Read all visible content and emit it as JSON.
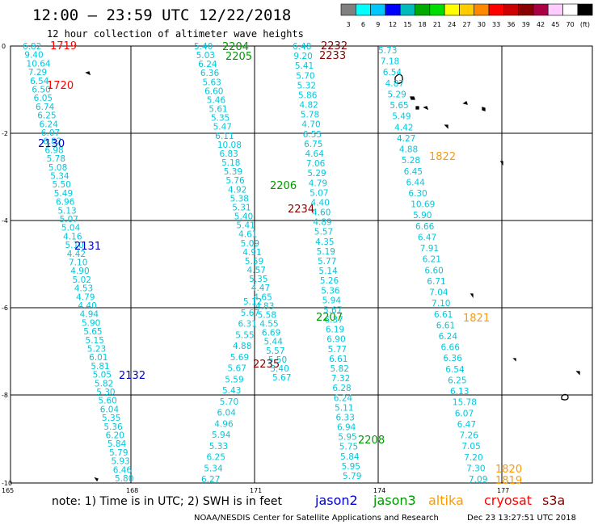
{
  "header": {
    "title": "12:00 — 23:59 UTC 12/22/2018",
    "subtitle": "12 hour collection of altimeter wave heights"
  },
  "legend": {
    "colors": [
      "#808080",
      "#00ffff",
      "#00c8ff",
      "#0000ff",
      "#00bbbb",
      "#00aa00",
      "#00dd00",
      "#ffff00",
      "#ffcc00",
      "#ff8800",
      "#ff0000",
      "#cc0000",
      "#880000",
      "#aa0044",
      "#ffccff",
      "#ffffff",
      "#000000"
    ],
    "labels": [
      "3",
      "6",
      "9",
      "12",
      "15",
      "18",
      "21",
      "24",
      "27",
      "30",
      "33",
      "36",
      "39",
      "42",
      "45",
      "70",
      "(ft)"
    ]
  },
  "axes": {
    "y_ticks": [
      "0",
      "-2",
      "-4",
      "-6",
      "-8",
      "-10"
    ],
    "x_ticks": [
      "165",
      "168",
      "171",
      "174",
      "177"
    ]
  },
  "footer": {
    "note": "note:  1) Time is in UTC;  2) SWH is in feet",
    "credit": "NOAA/NESDIS Center for Satellite Applications and Research",
    "timestamp": "Dec 23 13:27:51 UTC 2018"
  },
  "satellites": [
    {
      "name": "jason2",
      "color": "#0000cc"
    },
    {
      "name": "jason3",
      "color": "#009900"
    },
    {
      "name": "altika",
      "color": "#ff9900"
    },
    {
      "name": "cryosat",
      "color": "#ff0000"
    },
    {
      "name": "s3a",
      "color": "#880000"
    }
  ],
  "time_labels": [
    {
      "text": "1719",
      "color": "#ff0000"
    },
    {
      "text": "1720",
      "color": "#ff0000"
    },
    {
      "text": "2130",
      "color": "#0000cc"
    },
    {
      "text": "2131",
      "color": "#0000cc"
    },
    {
      "text": "2132",
      "color": "#0000cc"
    },
    {
      "text": "2204",
      "color": "#009900"
    },
    {
      "text": "2205",
      "color": "#009900"
    },
    {
      "text": "2206",
      "color": "#009900"
    },
    {
      "text": "2207",
      "color": "#009900"
    },
    {
      "text": "2208",
      "color": "#009900"
    },
    {
      "text": "2232",
      "color": "#880000"
    },
    {
      "text": "2233",
      "color": "#880000"
    },
    {
      "text": "2234",
      "color": "#880000"
    },
    {
      "text": "2235",
      "color": "#880000"
    },
    {
      "text": "1822",
      "color": "#ff9900"
    },
    {
      "text": "1821",
      "color": "#ff9900"
    },
    {
      "text": "1820",
      "color": "#ff9900"
    },
    {
      "text": "1819",
      "color": "#ff9900"
    }
  ],
  "tracks": [
    {
      "id": "cryosat-1719",
      "values": [
        "6.82",
        "9.40",
        "10.64",
        "7.29",
        "6.54",
        "6.50",
        "6.05",
        "6.74",
        "6.25",
        "6.24",
        "6.07",
        "6.82",
        "6.98",
        "5.78",
        "5.08",
        "5.34",
        "5.50",
        "5.49",
        "6.96",
        "5.13",
        "5.07",
        "5.04",
        "4.16",
        "5.10",
        "4.42",
        "7.10",
        "4.90",
        "5.02",
        "4.53",
        "4.79",
        "4.40",
        "4.94",
        "5.90",
        "5.65",
        "5.15",
        "5.23",
        "6.01",
        "5.81",
        "5.05",
        "5.82",
        "5.30",
        "5.60",
        "6.04",
        "5.35",
        "5.36",
        "6.20",
        "5.84",
        "5.79",
        "5.93",
        "6.46",
        "5.80"
      ]
    },
    {
      "id": "jason3-2204",
      "values": [
        "5.40",
        "5.03",
        "6.24",
        "6.36",
        "5.63",
        "6.60",
        "5.46",
        "5.61",
        "5.35",
        "5.47",
        "6.11",
        "10.08",
        "6.83",
        "5.18",
        "5.39",
        "5.76",
        "4.92",
        "5.38",
        "5.31",
        "5.40",
        "5.41",
        "4.61",
        "5.09",
        "4.91",
        "5.59",
        "4.57",
        "5.35",
        "4.47",
        "4.65",
        "4.83",
        "5.58",
        "4.55",
        "6.69",
        "5.44",
        "5.57",
        "5.50",
        "5.40",
        "5.67"
      ]
    },
    {
      "id": "s3a-2232",
      "values": [
        "6.48",
        "9.20",
        "5.41",
        "5.70",
        "5.32",
        "5.86",
        "4.82",
        "5.78",
        "4.70",
        "6.55",
        "6.75",
        "4.64",
        "7.06",
        "5.29",
        "4.79",
        "5.07",
        "4.40",
        "4.60",
        "4.89",
        "5.57",
        "4.35",
        "5.19",
        "5.77",
        "5.14",
        "5.26",
        "5.36",
        "5.94",
        "5.67",
        "6.37",
        "6.19",
        "6.90",
        "5.77",
        "6.61",
        "5.82",
        "7.32",
        "6.28",
        "6.24",
        "5.11",
        "6.33",
        "6.94",
        "5.95",
        "5.75",
        "5.84",
        "5.95",
        "5.79"
      ]
    },
    {
      "id": "jason3-2205",
      "values": [
        "5.12",
        "5.67",
        "6.31",
        "5.55",
        "4.88",
        "5.69",
        "5.67",
        "5.59",
        "5.43",
        "5.70",
        "6.04",
        "4.96",
        "5.94",
        "5.33",
        "6.25",
        "5.34",
        "6.27"
      ]
    },
    {
      "id": "altika-1822",
      "values": [
        "5.73",
        "7.18",
        "6.54",
        "4.87",
        "5.29",
        "5.65",
        "5.49",
        "4.42",
        "4.27",
        "4.88",
        "5.28",
        "6.45",
        "6.44",
        "6.30",
        "10.69",
        "5.90",
        "6.66",
        "6.47",
        "7.91",
        "6.21",
        "6.60",
        "6.71",
        "7.04",
        "7.10",
        "6.61",
        "6.61",
        "6.24",
        "6.66",
        "6.36",
        "6.54",
        "6.25",
        "6.13",
        "15.78",
        "6.07",
        "6.47",
        "7.26",
        "7.05",
        "7.20",
        "7.30",
        "7.09"
      ]
    }
  ]
}
